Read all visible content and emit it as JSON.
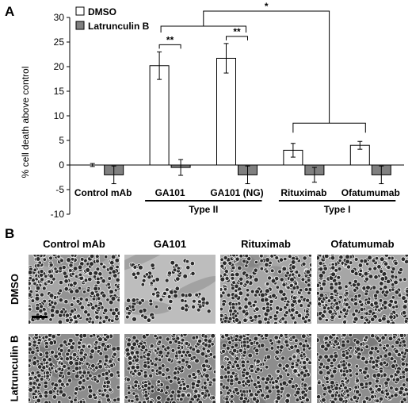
{
  "panel_a": {
    "letter": "A",
    "chart_data": {
      "type": "bar",
      "ylabel": "% cell death above control",
      "ylim": [
        -10,
        30
      ],
      "yticks": [
        -10,
        -5,
        0,
        5,
        10,
        15,
        20,
        25,
        30
      ],
      "categories": [
        "Control mAb",
        "GA101",
        "GA101 (NG)",
        "Rituximab",
        "Ofatumumab"
      ],
      "series": [
        {
          "name": "DMSO",
          "color": "#ffffff",
          "values": [
            0,
            20.2,
            21.7,
            3.0,
            4.0
          ],
          "errors": [
            0.3,
            2.8,
            3.0,
            1.4,
            0.8
          ]
        },
        {
          "name": "Latrunculin B",
          "color": "#808080",
          "values": [
            -2.0,
            -0.5,
            -2.0,
            -2.0,
            -2.0
          ],
          "errors": [
            1.8,
            1.6,
            1.8,
            1.5,
            1.8
          ]
        }
      ],
      "legend_position": "top-left",
      "groups": [
        {
          "label": "Type II",
          "from": 1,
          "to": 2
        },
        {
          "label": "Type I",
          "from": 3,
          "to": 4
        }
      ],
      "annotations": [
        {
          "label": "**",
          "category": 1,
          "between": "DMSO vs Latrunculin B"
        },
        {
          "label": "**",
          "category": 2,
          "between": "DMSO vs Latrunculin B"
        },
        {
          "label": "*",
          "between": "Type II vs Type I"
        }
      ]
    }
  },
  "panel_b": {
    "letter": "B",
    "columns": [
      "Control mAb",
      "GA101",
      "Rituximab",
      "Ofatumumab"
    ],
    "rows": [
      "DMSO",
      "Latrunculin B"
    ]
  }
}
